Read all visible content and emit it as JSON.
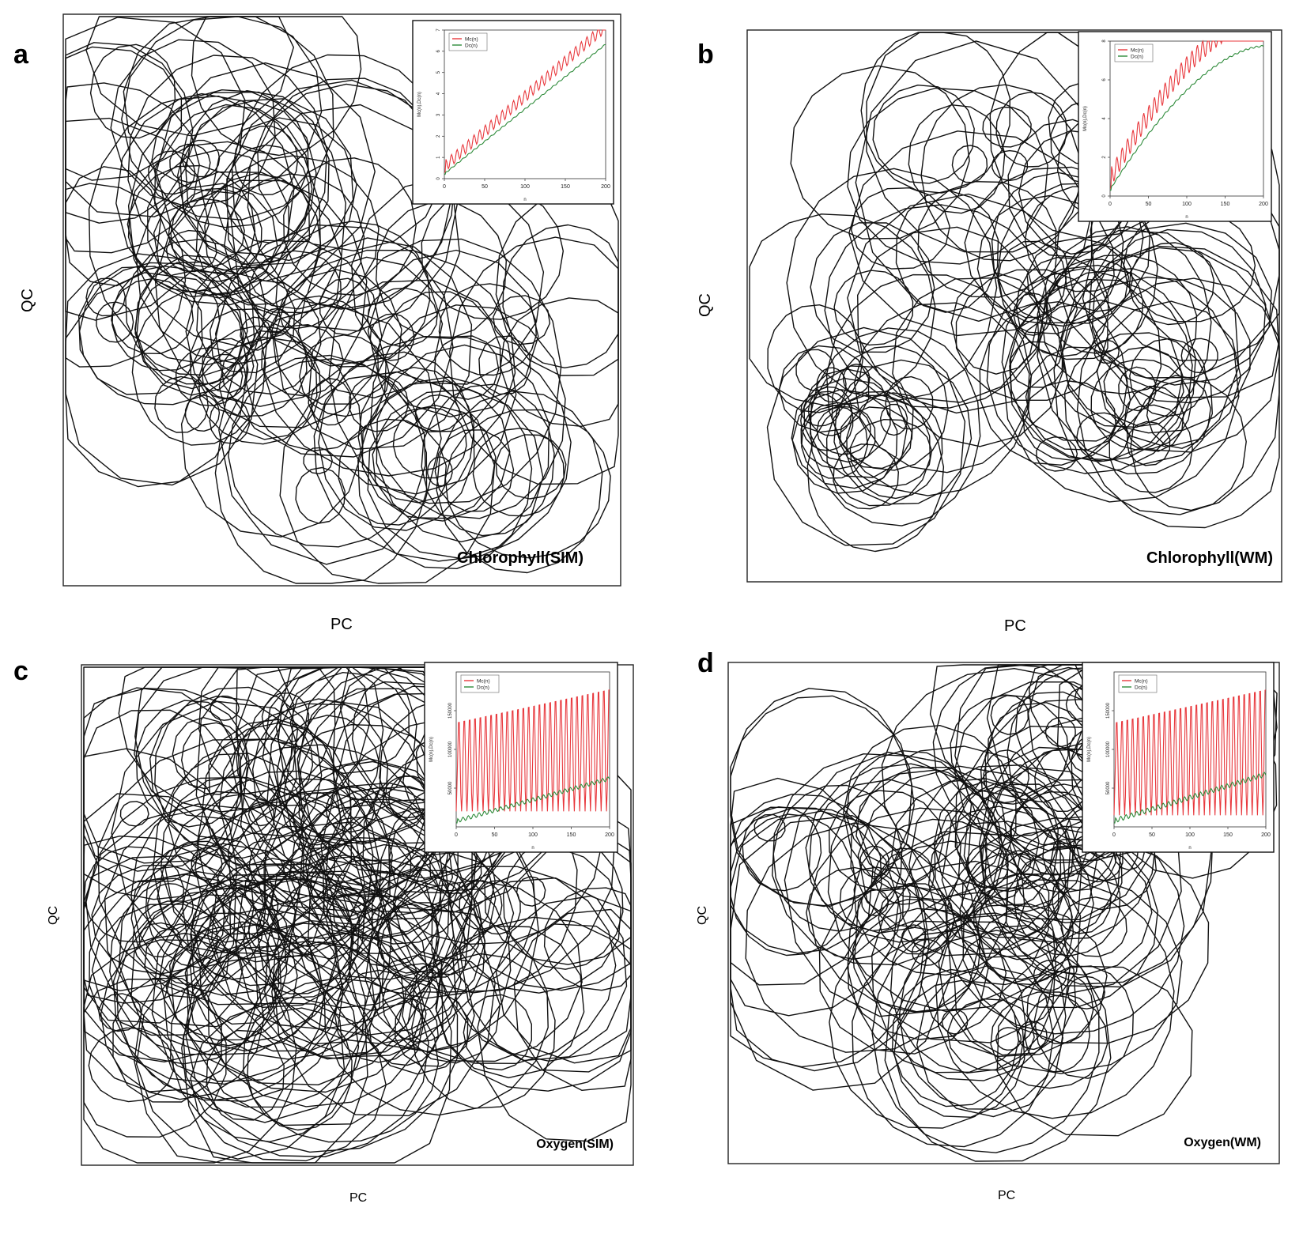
{
  "chart_data": [
    {
      "panel": "a",
      "type": "line",
      "title": "Chlorophyll(SIM)",
      "xlabel": "PC",
      "ylabel": "QC",
      "main_plot": "phase-space polygon trajectories",
      "inset": {
        "type": "line",
        "xlabel": "n",
        "ylabel": "Mc(n),Dc(n)",
        "xlim": [
          0,
          200
        ],
        "ylim": [
          0,
          7
        ],
        "xticks": [
          "0",
          "50",
          "100",
          "150",
          "200"
        ],
        "yticks": [
          "0",
          "1",
          "2",
          "3",
          "4",
          "5",
          "6",
          "7"
        ],
        "legend_position": "top-left",
        "series": [
          {
            "name": "Mc(n)",
            "color": "#e8383d",
            "start": 0.3,
            "end": 6.9,
            "shape": "linear",
            "oscillation": 0.55
          },
          {
            "name": "Dc(n)",
            "color": "#2e8b3a",
            "start": 0.2,
            "end": 6.3,
            "shape": "linear",
            "oscillation": 0.06
          }
        ]
      }
    },
    {
      "panel": "b",
      "type": "line",
      "title": "Chlorophyll(WM)",
      "xlabel": "PC",
      "ylabel": "QC",
      "main_plot": "phase-space polygon trajectories",
      "inset": {
        "type": "line",
        "xlabel": "n",
        "ylabel": "Mc(n),Dc(n)",
        "xlim": [
          0,
          200
        ],
        "ylim": [
          0,
          8
        ],
        "xticks": [
          "0",
          "50",
          "100",
          "150",
          "200"
        ],
        "yticks": [
          "0",
          "2",
          "4",
          "6",
          "8"
        ],
        "legend_position": "top-left",
        "series": [
          {
            "name": "Mc(n)",
            "color": "#e8383d",
            "start": 0.4,
            "end": 8.8,
            "shape": "concave",
            "oscillation": 1.0
          },
          {
            "name": "Dc(n)",
            "color": "#2e8b3a",
            "start": 0.3,
            "end": 7.7,
            "shape": "concave",
            "oscillation": 0.08
          }
        ]
      }
    },
    {
      "panel": "c",
      "type": "line",
      "title": "Oxygen(SIM)",
      "xlabel": "PC",
      "ylabel": "QC",
      "main_plot": "phase-space polygon trajectories",
      "inset": {
        "type": "line",
        "xlabel": "n",
        "ylabel": "Mc(n),Dc(n)",
        "xlim": [
          0,
          200
        ],
        "ylim": [
          0,
          200000
        ],
        "xticks": [
          "0",
          "50",
          "100",
          "150",
          "200"
        ],
        "yticks": [
          "50000",
          "100000",
          "150000"
        ],
        "legend_position": "top-left",
        "series": [
          {
            "name": "Mc(n)",
            "color": "#e8383d",
            "peaks_from": 140000,
            "peaks_to": 185000,
            "troughs": 20000
          },
          {
            "name": "Dc(n)",
            "color": "#2e8b3a",
            "start": 5000,
            "end": 60000,
            "oscillation": 5000
          }
        ]
      }
    },
    {
      "panel": "d",
      "type": "line",
      "title": "Oxygen(WM)",
      "xlabel": "PC",
      "ylabel": "QC",
      "main_plot": "phase-space polygon trajectories",
      "inset": {
        "type": "line",
        "xlabel": "n",
        "ylabel": "Mc(n),Dc(n)",
        "xlim": [
          0,
          200
        ],
        "ylim": [
          0,
          200000
        ],
        "xticks": [
          "0",
          "50",
          "100",
          "150",
          "200"
        ],
        "yticks": [
          "50000",
          "100000",
          "150000"
        ],
        "legend_position": "top-left",
        "series": [
          {
            "name": "Mc(n)",
            "color": "#e8383d",
            "peaks_from": 140000,
            "peaks_to": 185000,
            "troughs": 15000
          },
          {
            "name": "Dc(n)",
            "color": "#2e8b3a",
            "start": 5000,
            "end": 65000,
            "oscillation": 6000
          }
        ]
      }
    }
  ]
}
